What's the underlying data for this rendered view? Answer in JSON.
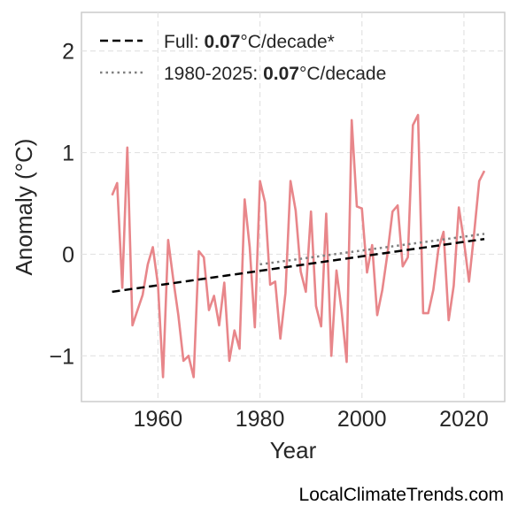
{
  "chart_data": {
    "type": "line",
    "xlabel": "Year",
    "ylabel": "Anomaly (°C)",
    "xlim": [
      1945,
      2028
    ],
    "ylim": [
      -1.45,
      2.38
    ],
    "xticks": [
      1960,
      1980,
      2000,
      2020
    ],
    "yticks": [
      -1,
      0,
      1,
      2
    ],
    "ytick_labels": [
      "−1",
      "0",
      "1",
      "2"
    ],
    "grid": true,
    "legend_position": "top-left",
    "series": [
      {
        "color": "#e8868a",
        "style": "solid",
        "x": [
          1951,
          1952,
          1953,
          1954,
          1955,
          1956,
          1957,
          1958,
          1959,
          1960,
          1961,
          1962,
          1963,
          1964,
          1965,
          1966,
          1967,
          1968,
          1969,
          1970,
          1971,
          1972,
          1973,
          1974,
          1975,
          1976,
          1977,
          1978,
          1979,
          1980,
          1981,
          1982,
          1983,
          1984,
          1985,
          1986,
          1987,
          1988,
          1989,
          1990,
          1991,
          1992,
          1993,
          1994,
          1995,
          1996,
          1997,
          1998,
          1999,
          2000,
          2001,
          2002,
          2003,
          2004,
          2005,
          2006,
          2007,
          2008,
          2009,
          2010,
          2011,
          2012,
          2013,
          2014,
          2015,
          2016,
          2017,
          2018,
          2019,
          2020,
          2021,
          2022,
          2023,
          2024
        ],
        "y": [
          0.58,
          0.7,
          -0.33,
          1.05,
          -0.7,
          -0.55,
          -0.4,
          -0.1,
          0.07,
          -0.3,
          -1.21,
          0.14,
          -0.25,
          -0.6,
          -1.05,
          -1.0,
          -1.21,
          0.03,
          -0.03,
          -0.55,
          -0.41,
          -0.7,
          -0.28,
          -1.05,
          -0.75,
          -0.93,
          0.54,
          0.07,
          -0.72,
          0.72,
          0.51,
          -0.3,
          -0.27,
          -0.83,
          -0.38,
          0.72,
          0.43,
          -0.17,
          -0.37,
          0.42,
          -0.51,
          -0.71,
          0.4,
          -1.0,
          -0.16,
          -0.55,
          -1.06,
          1.32,
          0.47,
          0.45,
          -0.18,
          0.09,
          -0.6,
          -0.35,
          0.0,
          0.42,
          0.48,
          -0.12,
          -0.03,
          1.27,
          1.37,
          -0.58,
          -0.58,
          -0.35,
          0.05,
          0.22,
          -0.65,
          -0.31,
          0.46,
          0.13,
          -0.27,
          0.2,
          0.72,
          0.82
        ]
      },
      {
        "name": "Full: ",
        "rate": "0.07",
        "unit": "°C/decade*",
        "color": "#000000",
        "style": "dashed",
        "x": [
          1951,
          2024
        ],
        "y": [
          -0.37,
          0.15
        ]
      },
      {
        "name": "1980-2025: ",
        "rate": "0.07",
        "unit": "°C/decade",
        "color": "#808080",
        "style": "dotted",
        "x": [
          1980,
          2024
        ],
        "y": [
          -0.1,
          0.2
        ]
      }
    ]
  },
  "watermark": "LocalClimateTrends.com"
}
